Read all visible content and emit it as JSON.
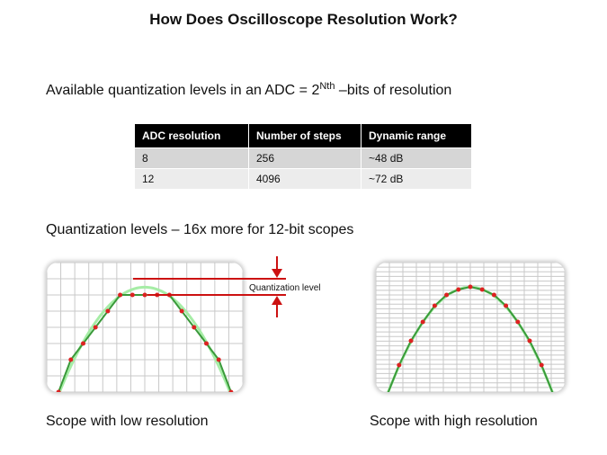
{
  "title": "How Does Oscilloscope Resolution Work?",
  "levels_text": {
    "prefix": "Available quantization levels in an ADC = 2",
    "superscript": "Nth",
    "suffix": " –bits of resolution"
  },
  "table": {
    "headers": [
      "ADC resolution",
      "Number of steps",
      "Dynamic range"
    ],
    "rows": [
      [
        "8",
        "256",
        "~48 dB"
      ],
      [
        "12",
        "4096",
        "~72 dB"
      ]
    ]
  },
  "quantization_text": "Quantization levels – 16x more for 12-bit scopes",
  "low_res": {
    "caption": "Scope with low resolution",
    "annotation": "Quantization level"
  },
  "high_res": {
    "caption": "Scope with high resolution"
  },
  "colors": {
    "ideal_curve": "#a6eda6",
    "sampled_curve": "#3a9a3a",
    "sample_dot": "#dd2222",
    "annotation": "#cc1111",
    "grid": "#c8c8c8"
  }
}
